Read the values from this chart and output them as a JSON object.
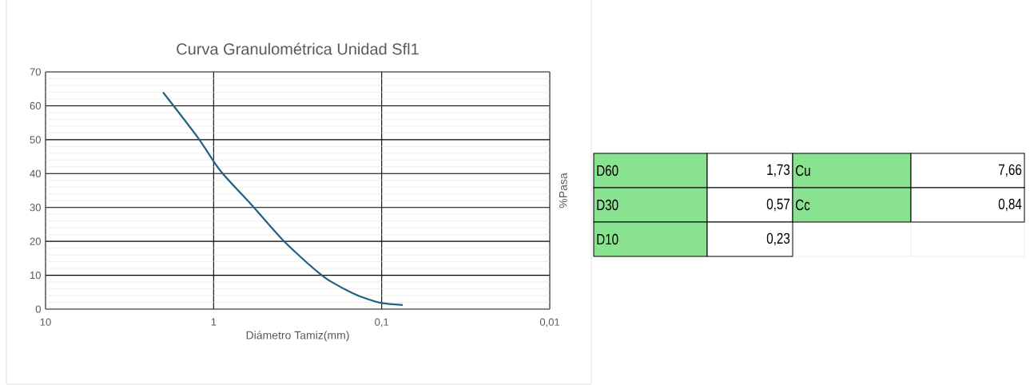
{
  "chart_data": [
    {
      "type": "line",
      "title": "Curva Granulométrica Unidad Sfl1",
      "xlabel": "Diámetro Tamiz(mm)",
      "ylabel": "%Pasa",
      "x": [
        2.0,
        1.24,
        0.914,
        0.593,
        0.398,
        0.299,
        0.235,
        0.2,
        0.15,
        0.122,
        0.1,
        0.075
      ],
      "values": [
        64,
        50.6,
        40.9,
        30.7,
        21,
        15.1,
        10.6,
        8.1,
        4.8,
        3.0,
        1.8,
        1.2
      ],
      "color": "#22617f",
      "log": "x",
      "grid": true,
      "marker": "none",
      "line_style": "solid",
      "xlim": [
        10,
        0.01
      ],
      "ylim": [
        0,
        70
      ],
      "xticks": [
        10,
        1,
        {
          "value": 0.1,
          "label": "0,1"
        },
        {
          "value": 0.01,
          "label": "0,01"
        }
      ],
      "yticks": [
        0,
        10,
        20,
        30,
        40,
        50,
        60,
        70
      ]
    },
    {
      "type": "other",
      "annotations": [
        "D60",
        "1,73",
        "Cu",
        "7,66",
        "D30",
        "0,57",
        "Cc",
        "0,84",
        "D10",
        "0,23"
      ]
    }
  ]
}
